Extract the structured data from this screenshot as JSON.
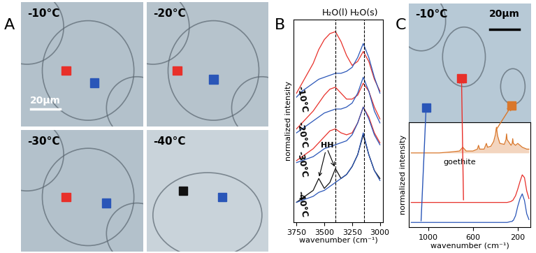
{
  "panel_labels": [
    "A",
    "B",
    "C"
  ],
  "images_A": [
    {
      "label": "-10°C",
      "scale_bar": "20μm",
      "colors": [
        "#e8302a",
        "#2a56b8"
      ]
    },
    {
      "label": "-20°C",
      "colors": [
        "#e8302a",
        "#2a56b8"
      ]
    },
    {
      "label": "-30°C",
      "colors": [
        "#e8302a",
        "#2a56b8"
      ]
    },
    {
      "label": "-40°C",
      "colors": [
        "#111111",
        "#2a56b8"
      ]
    }
  ],
  "image_C": {
    "label": "-10°C",
    "scale_bar": "20μm",
    "colors": [
      "#2a56b8",
      "#e8302a",
      "#d9772b"
    ]
  },
  "chart_data": [
    {
      "type": "line",
      "xlabel": "wavenumber (cm⁻¹)",
      "ylabel": "normalized intensity",
      "xlim": [
        3775,
        2975
      ],
      "xticks": [
        3750,
        3500,
        3250,
        3000
      ],
      "ylim": [
        0,
        1.02
      ],
      "tick_labels": "x",
      "x": [
        3750,
        3700,
        3650,
        3600,
        3550,
        3500,
        3450,
        3400,
        3350,
        3300,
        3250,
        3200,
        3150,
        3100,
        3050,
        3000
      ],
      "reference_lines": [
        {
          "x": 3400,
          "label": "H₂O(l)"
        },
        {
          "x": 3140,
          "label": "H₂O(s)"
        }
      ],
      "annotations": [
        {
          "text": "HH",
          "x": [
            3550,
            3400
          ]
        }
      ],
      "groups": [
        {
          "label": "-10°C",
          "series": [
            {
              "color": "#e8302a",
              "values": [
                0.65,
                0.7,
                0.75,
                0.8,
                0.87,
                0.92,
                0.95,
                0.96,
                0.91,
                0.84,
                0.79,
                0.81,
                0.86,
                0.81,
                0.72,
                0.66
              ]
            },
            {
              "color": "#2a56b8",
              "values": [
                0.63,
                0.66,
                0.68,
                0.7,
                0.72,
                0.73,
                0.74,
                0.75,
                0.75,
                0.76,
                0.78,
                0.83,
                0.9,
                0.83,
                0.73,
                0.65
              ]
            }
          ]
        },
        {
          "label": "-20°C",
          "series": [
            {
              "color": "#e8302a",
              "values": [
                0.47,
                0.5,
                0.53,
                0.56,
                0.6,
                0.64,
                0.67,
                0.68,
                0.65,
                0.62,
                0.62,
                0.64,
                0.7,
                0.66,
                0.58,
                0.52
              ]
            },
            {
              "color": "#2a56b8",
              "values": [
                0.45,
                0.47,
                0.49,
                0.51,
                0.53,
                0.55,
                0.56,
                0.57,
                0.57,
                0.58,
                0.6,
                0.65,
                0.73,
                0.66,
                0.56,
                0.5
              ]
            }
          ]
        },
        {
          "label": "-30°C",
          "series": [
            {
              "color": "#e8302a",
              "values": [
                0.31,
                0.33,
                0.35,
                0.37,
                0.4,
                0.43,
                0.46,
                0.47,
                0.45,
                0.44,
                0.45,
                0.5,
                0.58,
                0.53,
                0.45,
                0.4
              ]
            },
            {
              "color": "#2a56b8",
              "values": [
                0.3,
                0.31,
                0.32,
                0.33,
                0.35,
                0.37,
                0.38,
                0.39,
                0.4,
                0.41,
                0.44,
                0.5,
                0.58,
                0.52,
                0.44,
                0.39
              ]
            }
          ]
        },
        {
          "label": "-40°C",
          "series": [
            {
              "color": "#111111",
              "values": [
                0.1,
                0.12,
                0.14,
                0.16,
                0.22,
                0.17,
                0.2,
                0.27,
                0.22,
                0.24,
                0.28,
                0.34,
                0.44,
                0.34,
                0.26,
                0.22
              ]
            },
            {
              "color": "#2a56b8",
              "values": [
                0.1,
                0.11,
                0.12,
                0.13,
                0.15,
                0.16,
                0.18,
                0.2,
                0.22,
                0.24,
                0.28,
                0.34,
                0.45,
                0.34,
                0.26,
                0.21
              ]
            }
          ]
        }
      ]
    },
    {
      "type": "line",
      "xlabel": "wavenumber (cm⁻¹)",
      "ylabel": "normalized intensity",
      "xlim": [
        1170,
        90
      ],
      "xticks": [
        1000,
        600,
        200
      ],
      "ylim": [
        0,
        1.1
      ],
      "tick_labels": "x",
      "x": [
        1150,
        1000,
        900,
        800,
        720,
        690,
        660,
        600,
        560,
        550,
        540,
        500,
        480,
        470,
        440,
        415,
        400,
        390,
        380,
        360,
        320,
        305,
        300,
        295,
        260,
        250,
        245,
        240,
        220,
        200,
        180,
        160,
        140,
        120,
        100
      ],
      "annotations": [
        {
          "text": "goethite"
        }
      ],
      "series": [
        {
          "color": "#d9772b",
          "values": [
            0.78,
            0.78,
            0.78,
            0.79,
            0.8,
            0.84,
            0.8,
            0.8,
            0.82,
            0.86,
            0.82,
            0.82,
            0.88,
            0.84,
            0.85,
            0.9,
            0.97,
            1.05,
            0.96,
            0.88,
            0.87,
            0.92,
            0.98,
            0.92,
            0.86,
            0.88,
            0.93,
            0.88,
            0.86,
            0.88,
            0.86,
            0.84,
            0.83,
            0.82,
            0.82
          ]
        },
        {
          "color": "#e8302a",
          "values": [
            0.26,
            0.26,
            0.26,
            0.26,
            0.26,
            0.26,
            0.26,
            0.26,
            0.26,
            0.26,
            0.26,
            0.26,
            0.26,
            0.26,
            0.26,
            0.26,
            0.26,
            0.26,
            0.26,
            0.26,
            0.26,
            0.26,
            0.26,
            0.26,
            0.27,
            0.28,
            0.28,
            0.29,
            0.33,
            0.4,
            0.48,
            0.55,
            0.52,
            0.38,
            0.3
          ]
        },
        {
          "color": "#2a56b8",
          "values": [
            0.05,
            0.05,
            0.05,
            0.05,
            0.05,
            0.05,
            0.05,
            0.05,
            0.05,
            0.05,
            0.05,
            0.05,
            0.05,
            0.05,
            0.05,
            0.05,
            0.05,
            0.05,
            0.05,
            0.05,
            0.05,
            0.05,
            0.05,
            0.05,
            0.06,
            0.06,
            0.07,
            0.07,
            0.12,
            0.22,
            0.3,
            0.35,
            0.28,
            0.14,
            0.08
          ]
        }
      ]
    }
  ]
}
